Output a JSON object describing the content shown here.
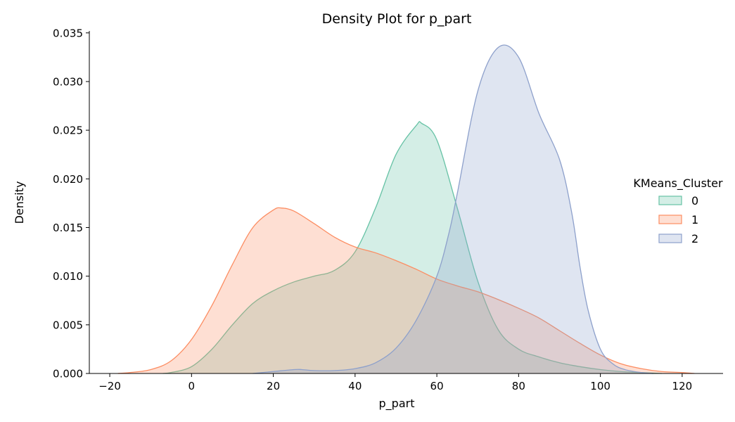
{
  "chart_data": {
    "type": "area",
    "title": "Density Plot for p_part",
    "xlabel": "p_part",
    "ylabel": "Density",
    "xlim": [
      -25,
      130
    ],
    "ylim": [
      0,
      0.0352
    ],
    "xticks": [
      -20,
      0,
      20,
      40,
      60,
      80,
      100,
      120
    ],
    "xtick_labels": [
      "−20",
      "0",
      "20",
      "40",
      "60",
      "80",
      "100",
      "120"
    ],
    "yticks": [
      0,
      0.005,
      0.01,
      0.015,
      0.02,
      0.025,
      0.03,
      0.035
    ],
    "ytick_labels": [
      "0.000",
      "0.005",
      "0.010",
      "0.015",
      "0.020",
      "0.025",
      "0.030",
      "0.035"
    ],
    "grid": false,
    "legend": {
      "title": "KMeans_Cluster",
      "placement": "right",
      "entries": [
        "0",
        "1",
        "2"
      ]
    },
    "series": [
      {
        "name": "0",
        "color": "#66c2a5",
        "fill": "#d5eee5",
        "x": [
          -7,
          -5,
          0,
          5,
          10,
          15,
          20,
          25,
          30,
          35,
          40,
          45,
          50,
          55,
          56.3,
          60,
          65,
          70,
          75,
          80,
          85,
          90,
          95,
          100,
          105,
          110,
          115
        ],
        "y": [
          0.0,
          0.0001,
          0.0007,
          0.0025,
          0.005,
          0.0072,
          0.0085,
          0.0094,
          0.01,
          0.0106,
          0.0125,
          0.017,
          0.0225,
          0.0255,
          0.0257,
          0.024,
          0.017,
          0.0095,
          0.0045,
          0.0025,
          0.0017,
          0.0011,
          0.0007,
          0.0004,
          0.0002,
          0.0001,
          0.0
        ]
      },
      {
        "name": "1",
        "color": "#fc8d62",
        "fill": "#fdd9cb",
        "x": [
          -18,
          -15,
          -10,
          -5,
          0,
          5,
          10,
          15,
          20,
          22,
          25,
          30,
          35,
          40,
          45,
          50,
          55,
          60,
          65,
          70,
          75,
          80,
          85,
          90,
          95,
          100,
          105,
          110,
          115,
          120,
          123
        ],
        "y": [
          0.0,
          0.0001,
          0.0004,
          0.0013,
          0.0035,
          0.007,
          0.0112,
          0.015,
          0.0168,
          0.017,
          0.0167,
          0.0154,
          0.014,
          0.013,
          0.0124,
          0.0116,
          0.0107,
          0.0097,
          0.009,
          0.0084,
          0.0076,
          0.0067,
          0.0057,
          0.0044,
          0.0031,
          0.0019,
          0.001,
          0.0005,
          0.0002,
          0.0001,
          0.0
        ]
      },
      {
        "name": "2",
        "color": "#8da0cb",
        "fill": "#e1e6f1",
        "x": [
          15,
          20,
          25,
          27,
          30,
          35,
          40,
          45,
          50,
          55,
          60,
          63,
          65,
          70,
          75,
          80,
          85,
          90,
          93,
          95,
          97,
          100,
          103,
          106,
          110,
          113
        ],
        "y": [
          0.0,
          0.0002,
          0.0004,
          0.0004,
          0.0003,
          0.0003,
          0.0005,
          0.0011,
          0.0026,
          0.0055,
          0.01,
          0.0145,
          0.0185,
          0.029,
          0.0335,
          0.0325,
          0.0267,
          0.022,
          0.0165,
          0.011,
          0.0065,
          0.0025,
          0.001,
          0.0004,
          0.0001,
          0.0
        ]
      }
    ]
  }
}
